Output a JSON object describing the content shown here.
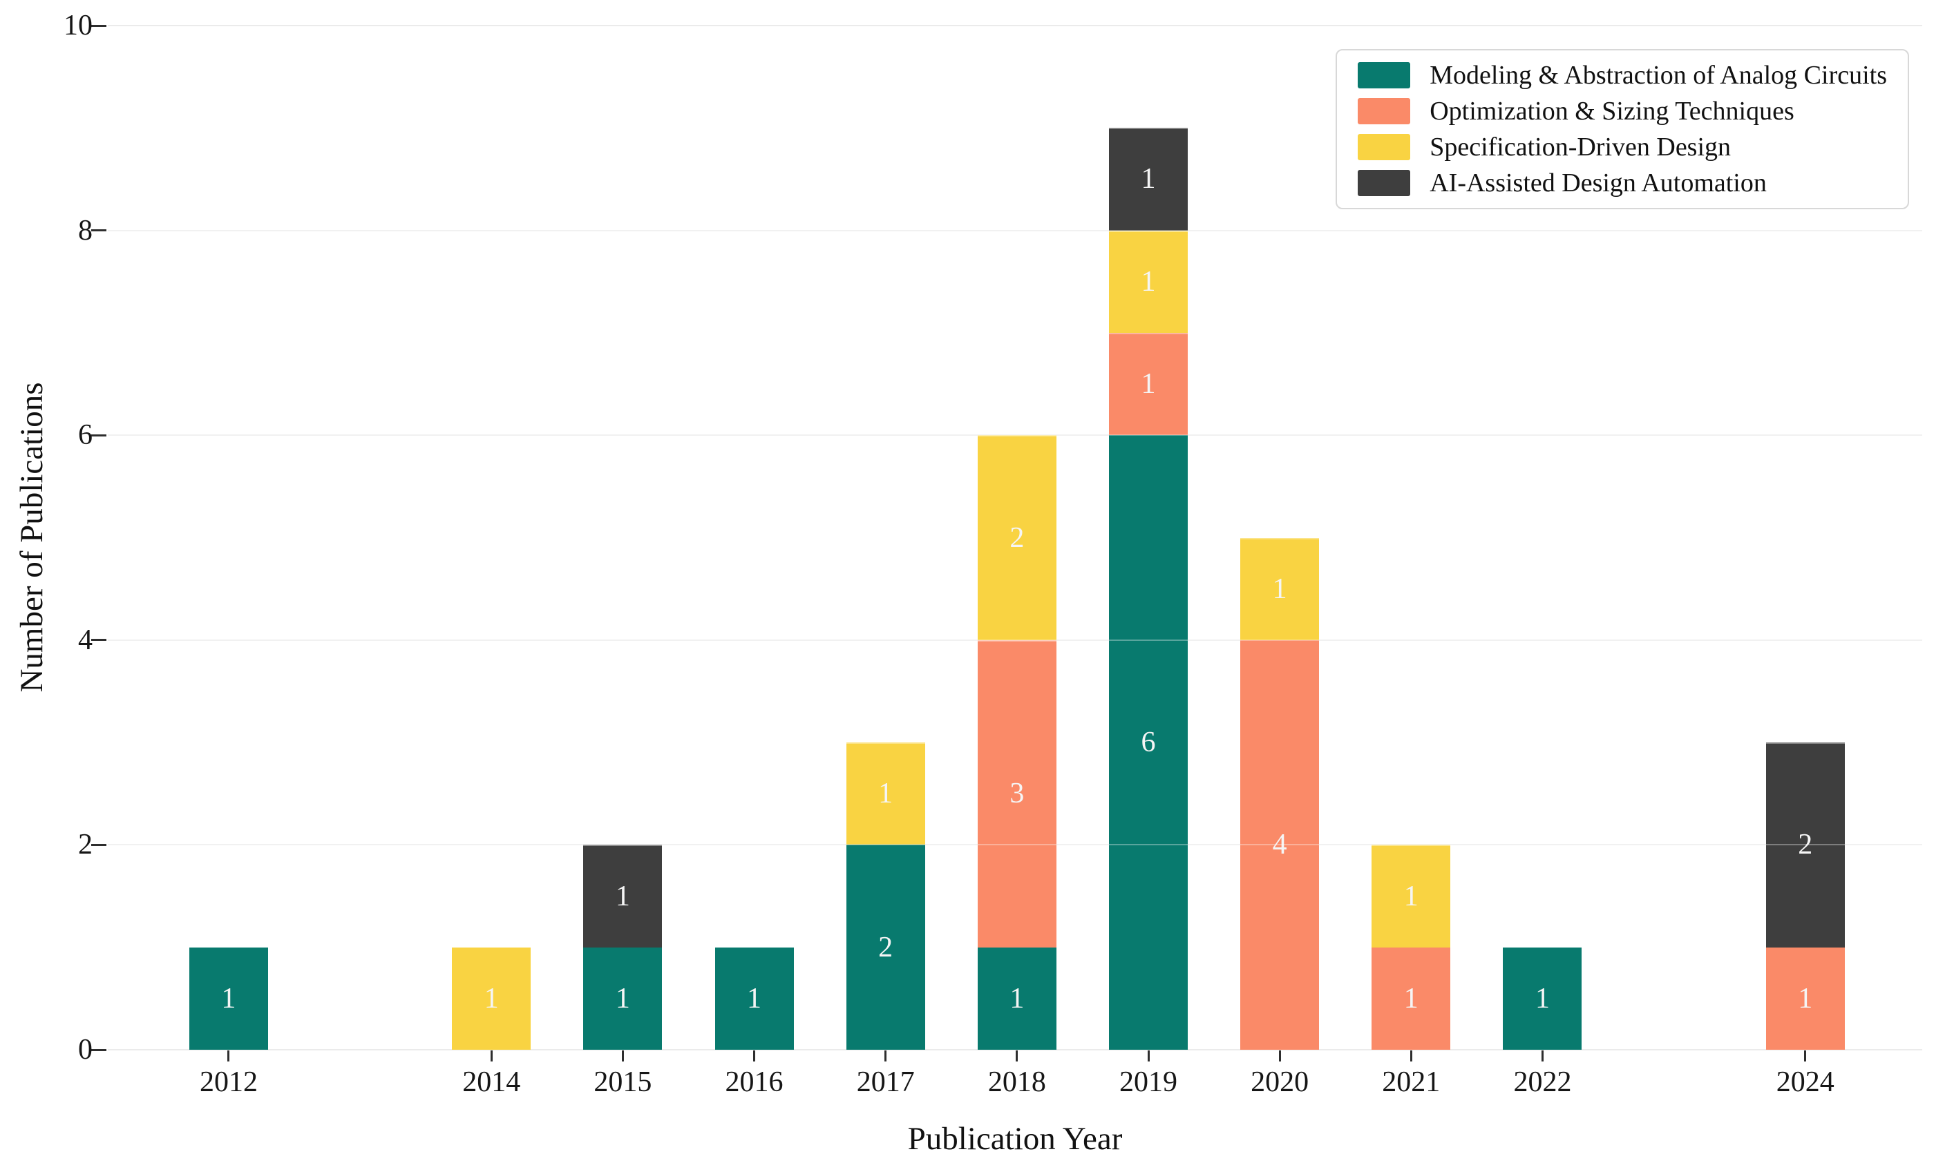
{
  "chart_data": {
    "type": "bar",
    "stacked": true,
    "title": "",
    "xlabel": "Publication Year",
    "ylabel": "Number of Publications",
    "xlim": [
      2011.08,
      2024.89
    ],
    "ylim": [
      0,
      10
    ],
    "yticks": [
      0,
      2,
      4,
      6,
      8,
      10
    ],
    "grid": true,
    "legend_position": "upper-right",
    "bar_width_years": 0.6,
    "value_labels": true,
    "categories": [
      2012,
      2014,
      2015,
      2016,
      2017,
      2018,
      2019,
      2020,
      2021,
      2022,
      2024
    ],
    "series": [
      {
        "name": "Modeling & Abstraction of Analog Circuits",
        "color": "#087a6e",
        "values": [
          1,
          0,
          1,
          1,
          2,
          1,
          6,
          0,
          0,
          1,
          0
        ]
      },
      {
        "name": "Optimization & Sizing Techniques",
        "color": "#fa8a68",
        "values": [
          0,
          0,
          0,
          0,
          0,
          3,
          1,
          4,
          1,
          0,
          1
        ]
      },
      {
        "name": "Specification-Driven Design",
        "color": "#f9d342",
        "values": [
          0,
          1,
          0,
          0,
          1,
          2,
          1,
          1,
          1,
          0,
          0
        ]
      },
      {
        "name": "AI-Assisted Design Automation",
        "color": "#3e3e3e",
        "values": [
          0,
          0,
          1,
          0,
          0,
          0,
          1,
          0,
          0,
          0,
          2
        ]
      }
    ]
  },
  "theme": {
    "background": "#ffffff",
    "grid_color": "#ebebeb",
    "grid_overlay_color": "rgba(255,255,255,0.33)",
    "segment_edge_color": "rgba(255,255,255,0.38)",
    "tick_mark_color": "#2e2e2e",
    "tick_label_color": "#161616",
    "axis_title_color": "#111111",
    "value_label_color": "#f5f5f5",
    "legend_border_color": "#d8d8d8",
    "legend_text_color": "#111111"
  }
}
